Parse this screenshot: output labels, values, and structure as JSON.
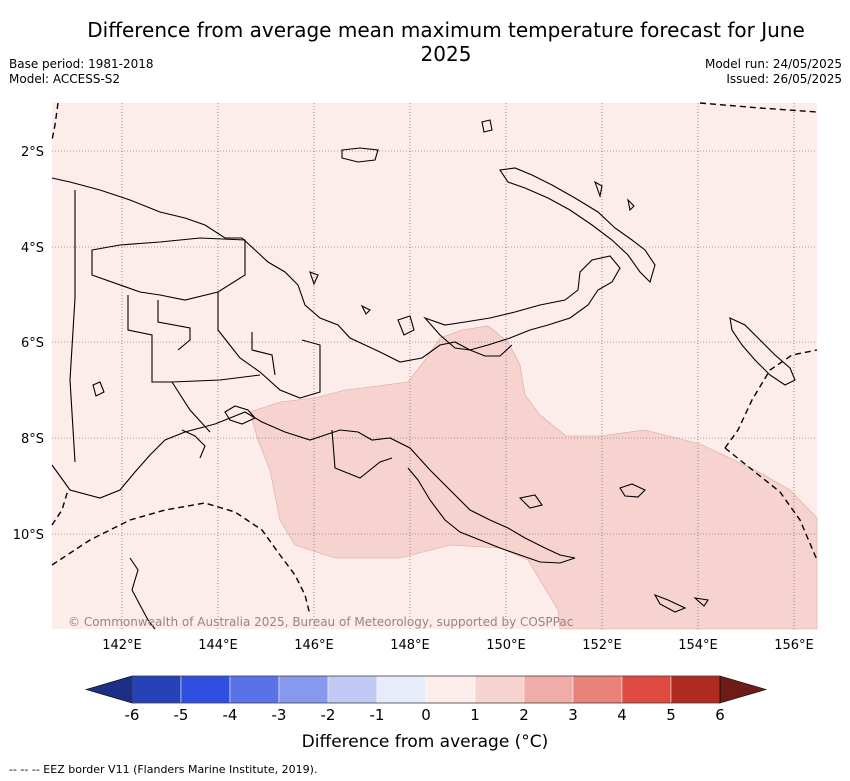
{
  "header": {
    "title": "Difference from average mean maximum temperature forecast for June 2025",
    "base_period": "Base period: 1981-2018",
    "model": "Model: ACCESS-S2",
    "model_run": "Model run: 24/05/2025",
    "issued": "Issued: 26/05/2025"
  },
  "map": {
    "lat_labels": [
      "2°S",
      "4°S",
      "6°S",
      "8°S",
      "10°S"
    ],
    "lon_labels": [
      "142°E",
      "144°E",
      "146°E",
      "148°E",
      "150°E",
      "152°E",
      "154°E",
      "156°E"
    ],
    "region": "Papua New Guinea",
    "extent": {
      "lon": [
        140.5,
        156.5
      ],
      "lat": [
        -12,
        -1
      ]
    },
    "background_category": "0 to 1",
    "highlight_category": "1 to 2",
    "copyright": "© Commonwealth of Australia 2025, Bureau of Meteorology, supported by COSPPac"
  },
  "colorbar": {
    "ticks": [
      "-6",
      "-5",
      "-4",
      "-3",
      "-2",
      "-1",
      "0",
      "1",
      "2",
      "3",
      "4",
      "5",
      "6"
    ],
    "colors": [
      "#1c2f85",
      "#2542b8",
      "#2e4fe0",
      "#5a72e8",
      "#8898ec",
      "#c1c9f5",
      "#e7ebfa",
      "#fcecea",
      "#f7d3d0",
      "#f0aca6",
      "#e8827a",
      "#de4a3f",
      "#b02a22",
      "#6e1c17"
    ],
    "label": "Difference from average (°C)"
  },
  "footnote": "-- -- -- EEZ border V11 (Flanders Marine Institute, 2019)."
}
